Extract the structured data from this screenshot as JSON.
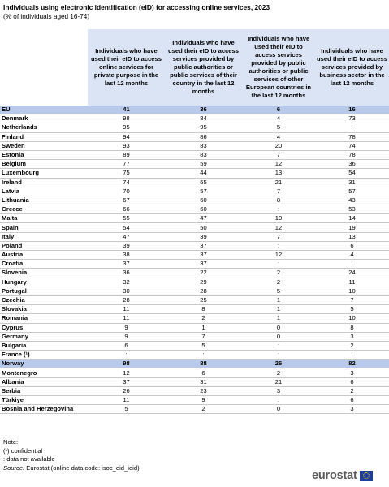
{
  "title": "Individuals using electronic identification (eID) for accessing online services, 2023",
  "subtitle": "(% of individuals aged 16-74)",
  "columns": [
    "Individuals who have used their eID to access online services for private purpose in the last 12 months",
    "Individuals who have used their eID to access services provided by public authorities or public services of their country in the last 12 months",
    "Individuals who have used their eID to access services provided by public authorities or public services of other European countries in the last 12 months",
    "Individuals who have used their eID to access services provided by business sector in the last 12 months"
  ],
  "rows": [
    {
      "country": "EU",
      "v": [
        "41",
        "36",
        "6",
        "16"
      ]
    },
    {
      "country": "Denmark",
      "v": [
        "98",
        "84",
        "4",
        "73"
      ]
    },
    {
      "country": "Netherlands",
      "v": [
        "95",
        "95",
        "5",
        ":"
      ]
    },
    {
      "country": "Finland",
      "v": [
        "94",
        "86",
        "4",
        "78"
      ]
    },
    {
      "country": "Sweden",
      "v": [
        "93",
        "83",
        "20",
        "74"
      ]
    },
    {
      "country": "Estonia",
      "v": [
        "89",
        "83",
        "7",
        "78"
      ]
    },
    {
      "country": "Belgium",
      "v": [
        "77",
        "59",
        "12",
        "36"
      ]
    },
    {
      "country": "Luxembourg",
      "v": [
        "75",
        "44",
        "13",
        "54"
      ]
    },
    {
      "country": "Ireland",
      "v": [
        "74",
        "65",
        "21",
        "31"
      ]
    },
    {
      "country": "Latvia",
      "v": [
        "70",
        "57",
        "7",
        "57"
      ]
    },
    {
      "country": "Lithuania",
      "v": [
        "67",
        "60",
        "8",
        "43"
      ]
    },
    {
      "country": "Greece",
      "v": [
        "66",
        "60",
        ":",
        "53"
      ]
    },
    {
      "country": "Malta",
      "v": [
        "55",
        "47",
        "10",
        "14"
      ]
    },
    {
      "country": "Spain",
      "v": [
        "54",
        "50",
        "12",
        "19"
      ]
    },
    {
      "country": "Italy",
      "v": [
        "47",
        "39",
        "7",
        "13"
      ]
    },
    {
      "country": "Poland",
      "v": [
        "39",
        "37",
        ":",
        "6"
      ]
    },
    {
      "country": "Austria",
      "v": [
        "38",
        "37",
        "12",
        "4"
      ]
    },
    {
      "country": "Croatia",
      "v": [
        "37",
        "37",
        ":",
        ":"
      ]
    },
    {
      "country": "Slovenia",
      "v": [
        "36",
        "22",
        "2",
        "24"
      ]
    },
    {
      "country": "Hungary",
      "v": [
        "32",
        "29",
        "2",
        "11"
      ]
    },
    {
      "country": "Portugal",
      "v": [
        "30",
        "28",
        "5",
        "10"
      ]
    },
    {
      "country": "Czechia",
      "v": [
        "28",
        "25",
        "1",
        "7"
      ]
    },
    {
      "country": "Slovakia",
      "v": [
        "11",
        "8",
        "1",
        "5"
      ]
    },
    {
      "country": "Romania",
      "v": [
        "11",
        "2",
        "1",
        "10"
      ]
    },
    {
      "country": "Cyprus",
      "v": [
        "9",
        "1",
        "0",
        "8"
      ]
    },
    {
      "country": "Germany",
      "v": [
        "9",
        "7",
        "0",
        "3"
      ]
    },
    {
      "country": "Bulgaria",
      "v": [
        "6",
        "5",
        ":",
        "2"
      ]
    },
    {
      "country": "France (¹)",
      "v": [
        ":",
        ":",
        ":",
        ":"
      ]
    },
    {
      "country": "Norway",
      "v": [
        "98",
        "88",
        "26",
        "82"
      ]
    },
    {
      "country": "Montenegro",
      "v": [
        "12",
        "6",
        "2",
        "3"
      ]
    },
    {
      "country": "Albania",
      "v": [
        "37",
        "31",
        "21",
        "6"
      ]
    },
    {
      "country": "Serbia",
      "v": [
        "26",
        "23",
        "3",
        "2"
      ]
    },
    {
      "country": "Türkiye",
      "v": [
        "11",
        "9",
        ":",
        "6"
      ]
    },
    {
      "country": "Bosnia and Herzegovina",
      "v": [
        "5",
        "2",
        "0",
        "3"
      ]
    }
  ],
  "notes": {
    "label": "Note:",
    "confidential": "(¹) confidential",
    "not_available": ": data not available",
    "source_label": "Source:",
    "source_text": "Eurostat (online data code: isoc_eid_ieid)"
  },
  "logo": {
    "text": "eurostat"
  }
}
